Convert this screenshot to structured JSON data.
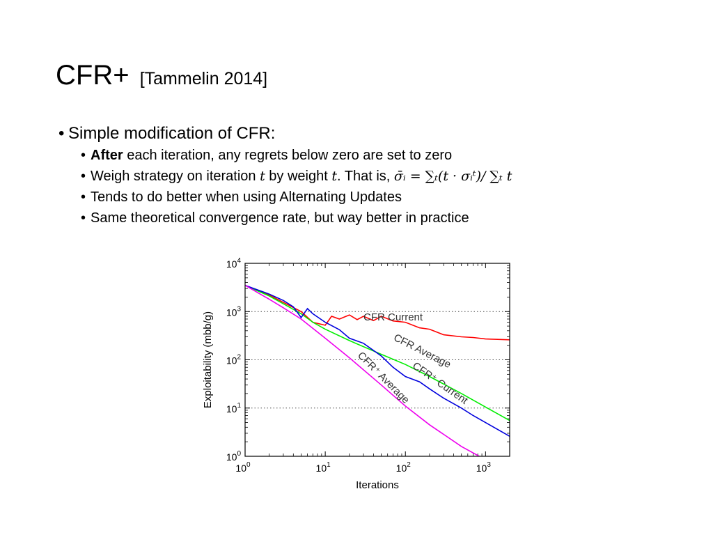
{
  "slide": {
    "title": "CFR+",
    "citation": "[Tammelin 2014]",
    "bullet_main": "Simple modification of CFR:",
    "sub1_bold": "After",
    "sub1_rest": " each iteration, any regrets below zero are set to zero",
    "sub2_text": "Weigh strategy on iteration ",
    "sub2_t1": "t",
    "sub2_mid": " by weight ",
    "sub2_t2": "t",
    "sub2_end": ". That is, ",
    "sub2_formula": "σ̄ᵢ = ∑ₜ(t · σᵢᵗ)/ ∑ₜ t",
    "sub3": "Tends to do better when using Alternating Updates",
    "sub4": "Same theoretical convergence rate, but way better in practice"
  },
  "chart_data": {
    "type": "line",
    "xlabel": "Iterations",
    "ylabel": "Exploitability (mbb/g)",
    "xscale": "log",
    "yscale": "log",
    "xlim": [
      1,
      2000
    ],
    "ylim": [
      1,
      10000
    ],
    "xticks": [
      {
        "value": 1,
        "base": "10",
        "exp": "0"
      },
      {
        "value": 10,
        "base": "10",
        "exp": "1"
      },
      {
        "value": 100,
        "base": "10",
        "exp": "2"
      },
      {
        "value": 1000,
        "base": "10",
        "exp": "3"
      }
    ],
    "yticks": [
      {
        "value": 1,
        "base": "10",
        "exp": "0"
      },
      {
        "value": 10,
        "base": "10",
        "exp": "1"
      },
      {
        "value": 100,
        "base": "10",
        "exp": "2"
      },
      {
        "value": 1000,
        "base": "10",
        "exp": "3"
      },
      {
        "value": 10000,
        "base": "10",
        "exp": "4"
      }
    ],
    "grid": "dotted horizontal at y ticks",
    "series": [
      {
        "name": "CFR Current",
        "color": "#ff0000",
        "x": [
          1,
          2,
          3,
          5,
          7,
          10,
          12,
          15,
          20,
          25,
          30,
          40,
          50,
          70,
          100,
          150,
          200,
          300,
          500,
          700,
          1000,
          2000
        ],
        "y": [
          3500,
          2200,
          1550,
          1000,
          600,
          520,
          800,
          700,
          850,
          680,
          800,
          650,
          800,
          640,
          600,
          460,
          430,
          330,
          300,
          290,
          270,
          260
        ]
      },
      {
        "name": "CFR Average",
        "color": "#00ee00",
        "x": [
          1,
          2,
          3,
          5,
          7,
          10,
          20,
          50,
          100,
          200,
          500,
          1000,
          2000
        ],
        "y": [
          3500,
          2100,
          1450,
          900,
          600,
          430,
          250,
          130,
          80,
          45,
          20,
          10.5,
          5.5
        ]
      },
      {
        "name": "CFR⁺ Current",
        "color": "#0000dd",
        "x": [
          1,
          2,
          3,
          4,
          5,
          6,
          7,
          10,
          15,
          20,
          30,
          50,
          70,
          100,
          150,
          200,
          300,
          500,
          700,
          1000,
          2000
        ],
        "y": [
          3500,
          2300,
          1700,
          1250,
          750,
          1150,
          900,
          600,
          420,
          280,
          220,
          120,
          70,
          45,
          35,
          25,
          16,
          10,
          7,
          5,
          2.6
        ]
      },
      {
        "name": "CFR⁺ Average",
        "color": "#ee00ee",
        "x": [
          1,
          2,
          3,
          5,
          10,
          20,
          50,
          100,
          200,
          500,
          1000,
          1200
        ],
        "y": [
          3500,
          1800,
          1200,
          700,
          280,
          110,
          30,
          11,
          4.5,
          1.6,
          0.85,
          0.7
        ]
      }
    ],
    "annotations": [
      {
        "text": "CFR Current",
        "color": "#333333"
      },
      {
        "text": "CFR Average",
        "color": "#333333"
      },
      {
        "text": "CFR⁺ Current",
        "color": "#333333"
      },
      {
        "text": "CFR⁺ Average",
        "color": "#333333"
      }
    ]
  }
}
